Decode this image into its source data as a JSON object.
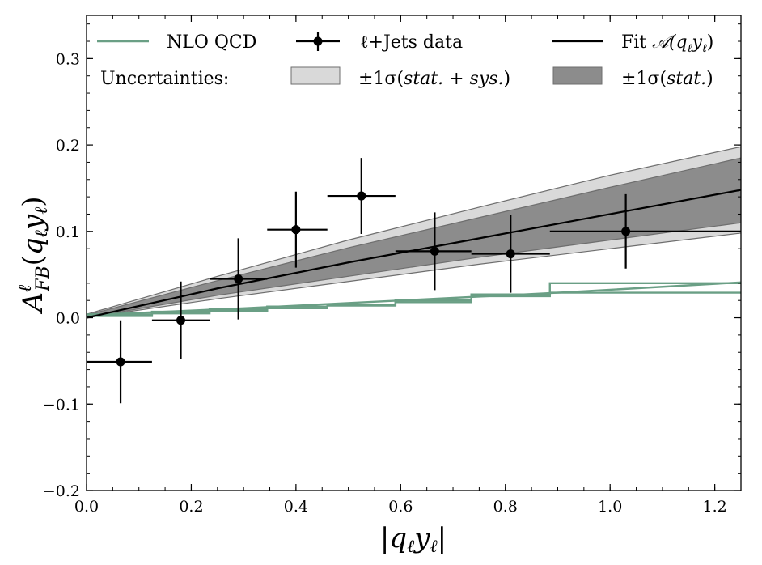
{
  "chart_data": {
    "type": "line",
    "title": "",
    "xlabel": "|q_ℓ y_ℓ|",
    "ylabel": "A^ℓ_FB(q_ℓ y_ℓ)",
    "xlabel_parts": {
      "open": "|",
      "q": "q",
      "qsub": "ℓ",
      "y": "y",
      "ysub": "ℓ",
      "close": "|"
    },
    "ylabel_parts": {
      "A": "A",
      "sup": "ℓ",
      "sub": "FB",
      "open": "(",
      "q": "q",
      "qsub": "ℓ",
      "y": "y",
      "ysub": "ℓ",
      "close": ")"
    },
    "xlim": [
      0.0,
      1.25
    ],
    "ylim": [
      -0.2,
      0.35
    ],
    "xticks": [
      "0.0",
      "0.2",
      "0.4",
      "0.6",
      "0.8",
      "1.0",
      "1.2"
    ],
    "yticks": [
      "−0.2",
      "−0.1",
      "0.0",
      "0.1",
      "0.2",
      "0.3"
    ],
    "xtick_values": [
      0.0,
      0.2,
      0.4,
      0.6,
      0.8,
      1.0,
      1.2
    ],
    "ytick_values": [
      -0.2,
      -0.1,
      0.0,
      0.1,
      0.2,
      0.3
    ],
    "grid": false,
    "legend": {
      "nlo": "NLO QCD",
      "data": "ℓ+Jets data",
      "fit_prefix": "Fit ",
      "fit_func": "𝒜(q",
      "fit_sub1": "ℓ",
      "fit_mid": "y",
      "fit_sub2": "ℓ",
      "fit_close": ")",
      "uncert": "Uncertainties:",
      "band_total_pre": "±1σ(",
      "band_total_it": "stat. + sys.",
      "band_total_post": ")",
      "band_stat_pre": "±1σ(",
      "band_stat_it": "stat.",
      "band_stat_post": ")"
    },
    "colors": {
      "nlo": "#6a9f85",
      "fit": "#000000",
      "band_total": "#d9d9d9",
      "band_stat": "#8c8c8c",
      "band_edge": "#6e6e6e",
      "data": "#000000"
    },
    "data_points": [
      {
        "x": 0.065,
        "xlo": 0.0,
        "xhi": 0.125,
        "y": -0.051,
        "err": 0.048
      },
      {
        "x": 0.18,
        "xlo": 0.125,
        "xhi": 0.235,
        "y": -0.003,
        "err": 0.045
      },
      {
        "x": 0.29,
        "xlo": 0.235,
        "xhi": 0.345,
        "y": 0.045,
        "err": 0.047
      },
      {
        "x": 0.4,
        "xlo": 0.345,
        "xhi": 0.46,
        "y": 0.102,
        "err": 0.044
      },
      {
        "x": 0.525,
        "xlo": 0.46,
        "xhi": 0.59,
        "y": 0.141,
        "err": 0.044
      },
      {
        "x": 0.665,
        "xlo": 0.59,
        "xhi": 0.735,
        "y": 0.077,
        "err": 0.045
      },
      {
        "x": 0.81,
        "xlo": 0.735,
        "xhi": 0.885,
        "y": 0.074,
        "err": 0.045
      },
      {
        "x": 1.03,
        "xlo": 0.885,
        "xhi": 1.25,
        "y": 0.1,
        "err": 0.043
      }
    ],
    "fit_curve": {
      "x": [
        0.0,
        0.25,
        0.5,
        0.75,
        1.0,
        1.25
      ],
      "y": [
        0.0,
        0.034,
        0.064,
        0.092,
        0.12,
        0.148
      ]
    },
    "band_total": {
      "x": [
        0.0,
        0.25,
        0.5,
        0.75,
        1.0,
        1.25
      ],
      "lo": [
        0.0,
        0.022,
        0.042,
        0.062,
        0.08,
        0.098
      ],
      "hi": [
        0.004,
        0.048,
        0.09,
        0.128,
        0.165,
        0.198
      ]
    },
    "band_stat": {
      "x": [
        0.0,
        0.25,
        0.5,
        0.75,
        1.0,
        1.25
      ],
      "lo": [
        0.0,
        0.026,
        0.048,
        0.07,
        0.09,
        0.11
      ],
      "hi": [
        0.003,
        0.043,
        0.081,
        0.116,
        0.151,
        0.185
      ]
    },
    "nlo_step_a": {
      "edges": [
        0.0,
        0.125,
        0.235,
        0.345,
        0.46,
        0.59,
        0.735,
        0.885,
        1.25
      ],
      "values": [
        0.004,
        0.007,
        0.01,
        0.013,
        0.015,
        0.02,
        0.027,
        0.04
      ]
    },
    "nlo_step_b": {
      "edges": [
        0.0,
        0.125,
        0.235,
        0.345,
        0.46,
        0.59,
        0.735,
        0.885,
        1.25
      ],
      "values": [
        0.002,
        0.005,
        0.008,
        0.011,
        0.014,
        0.018,
        0.025,
        0.029
      ]
    },
    "nlo_smooth": {
      "x": [
        0.0,
        0.3,
        0.6,
        0.9,
        1.25
      ],
      "y": [
        0.003,
        0.011,
        0.02,
        0.029,
        0.041
      ]
    }
  }
}
